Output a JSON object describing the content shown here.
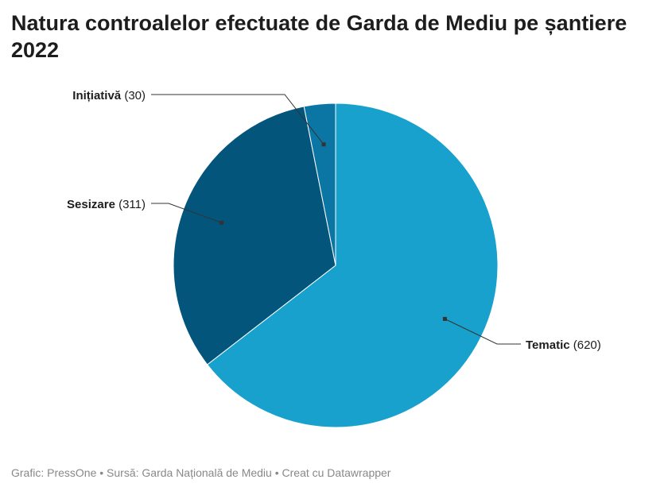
{
  "chart_data": {
    "type": "pie",
    "title": "Natura controalelor efectuate de Garda de Mediu pe șantiere 2022",
    "slices": [
      {
        "label": "Tematic",
        "value": 620,
        "color": "#18a1cd"
      },
      {
        "label": "Sesizare",
        "value": 311,
        "color": "#04557c"
      },
      {
        "label": "Inițiativă",
        "value": 30,
        "color": "#0b76a3"
      }
    ],
    "start": "top",
    "direction": "clockwise"
  },
  "footer": "Grafic: PressOne • Sursă: Garda Națională de Mediu • Creat cu Datawrapper"
}
